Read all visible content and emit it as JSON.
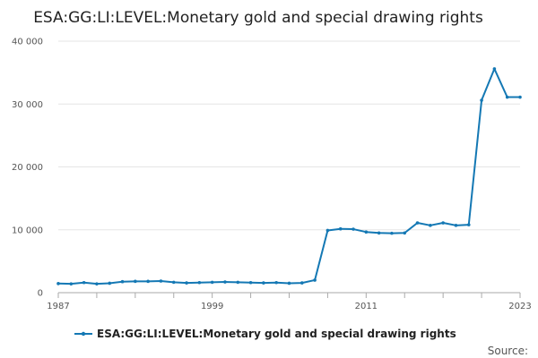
{
  "chart_data": {
    "type": "line",
    "title": "ESA:GG:LI:LEVEL:Monetary gold and special drawing rights",
    "xlabel": "",
    "ylabel": "",
    "ylim": [
      0,
      40000
    ],
    "yticks": [
      0,
      10000,
      20000,
      30000,
      40000
    ],
    "ytick_labels": [
      "0",
      "10 000",
      "20 000",
      "30 000",
      "40 000"
    ],
    "xlim": [
      1987,
      2023
    ],
    "xticks": [
      1987,
      1999,
      2011,
      2023
    ],
    "xtick_labels": [
      "1987",
      "1999",
      "2011",
      "2023"
    ],
    "grid": true,
    "legend_position": "bottom",
    "series_color": "#1478b4",
    "series": [
      {
        "name": "ESA:GG:LI:LEVEL:Monetary gold and special drawing rights",
        "x": [
          1987,
          1988,
          1989,
          1990,
          1991,
          1992,
          1993,
          1994,
          1995,
          1996,
          1997,
          1998,
          1999,
          2000,
          2001,
          2002,
          2003,
          2004,
          2005,
          2006,
          2007,
          2008,
          2009,
          2010,
          2011,
          2012,
          2013,
          2014,
          2015,
          2016,
          2017,
          2018,
          2019,
          2020,
          2021,
          2022,
          2023
        ],
        "values": [
          1450,
          1400,
          1600,
          1400,
          1500,
          1750,
          1800,
          1800,
          1850,
          1650,
          1550,
          1600,
          1650,
          1700,
          1650,
          1600,
          1550,
          1600,
          1500,
          1550,
          2000,
          9900,
          10150,
          10100,
          9650,
          9500,
          9450,
          9500,
          11100,
          10700,
          11100,
          10700,
          10800,
          30600,
          35600,
          31100,
          31100
        ]
      }
    ]
  },
  "source_label": "Source:"
}
